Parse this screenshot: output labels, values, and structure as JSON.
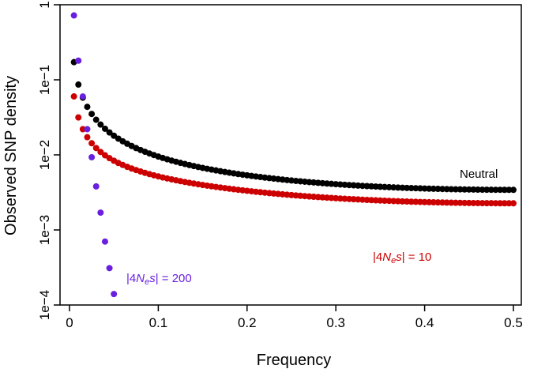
{
  "chart_data": {
    "type": "scatter",
    "xlabel": "Frequency",
    "ylabel": "Observed SNP density",
    "xlim": [
      0,
      0.5
    ],
    "ylim": [
      0.0001,
      1
    ],
    "y_scale": "log",
    "x_ticks": [
      {
        "value": 0,
        "label": "0"
      },
      {
        "value": 0.1,
        "label": "0.1"
      },
      {
        "value": 0.2,
        "label": "0.2"
      },
      {
        "value": 0.3,
        "label": "0.3"
      },
      {
        "value": 0.4,
        "label": "0.4"
      },
      {
        "value": 0.5,
        "label": "0.5"
      }
    ],
    "y_ticks": [
      {
        "value": 1,
        "label": "1"
      },
      {
        "value": 0.1,
        "label": "1e−1"
      },
      {
        "value": 0.01,
        "label": "1e−2"
      },
      {
        "value": 0.001,
        "label": "1e−3"
      },
      {
        "value": 0.0001,
        "label": "1e−4"
      }
    ],
    "grid": false,
    "legend": "none",
    "series": [
      {
        "name": "Neutral",
        "color": "#000000",
        "x_start": 0.005,
        "x_step": 0.005,
        "x_end": 0.5,
        "model": "neutral"
      },
      {
        "name": "|4N_es| = 10",
        "color": "#cc0000",
        "x_start": 0.005,
        "x_step": 0.005,
        "x_end": 0.5,
        "model": "selected",
        "gamma": 10
      },
      {
        "name": "|4N_es| = 200",
        "color": "#6a1fe0",
        "x": [
          0.005,
          0.01,
          0.015,
          0.02,
          0.025,
          0.03,
          0.035,
          0.04,
          0.045,
          0.05
        ],
        "y": [
          0.72,
          0.18,
          0.06,
          0.022,
          0.0093,
          0.0038,
          0.0017,
          0.0007,
          0.00031,
          0.00014
        ]
      }
    ],
    "annotations": [
      {
        "parts": [
          "Neutral"
        ],
        "color": "#000000"
      },
      {
        "parts": [
          "|4",
          "N",
          "e",
          "s",
          "| = 10"
        ],
        "color": "#cc0000"
      },
      {
        "parts": [
          "|4",
          "N",
          "e",
          "s",
          "| = 200"
        ],
        "color": "#6a1fe0"
      }
    ]
  }
}
